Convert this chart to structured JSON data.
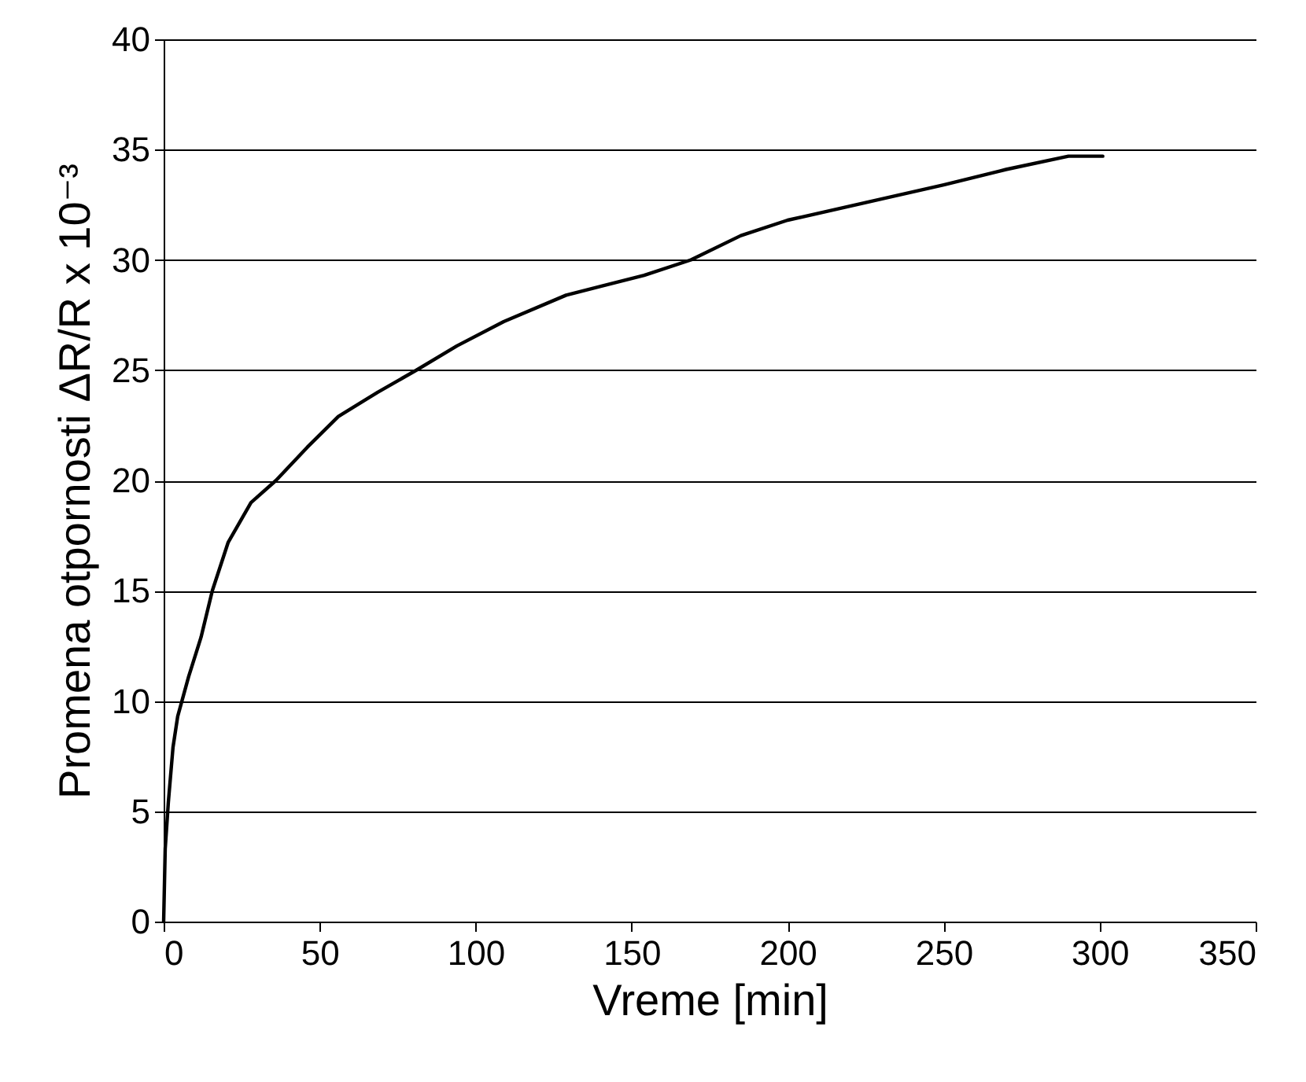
{
  "chart_data": {
    "type": "line",
    "xlabel": "Vreme [min]",
    "ylabel": "Promena otpornosti ΔR/R x 10⁻³",
    "xlim": [
      0,
      350
    ],
    "xticks": [
      0,
      50,
      100,
      150,
      200,
      250,
      300,
      350
    ],
    "ylim": [
      0,
      40
    ],
    "yticks": [
      0,
      5,
      10,
      15,
      20,
      25,
      30,
      35,
      40
    ],
    "grid": "y",
    "line_style": "solid",
    "series": [
      {
        "color": "#000000",
        "x": [
          0,
          0.5,
          1.5,
          3,
          4.5,
          8,
          12,
          15.6,
          20.7,
          28,
          36,
          46,
          56,
          68.6,
          81,
          94,
          109,
          129,
          154,
          169,
          185,
          200,
          225,
          250,
          270,
          290,
          301
        ],
        "values": [
          0,
          3.3,
          5.4,
          7.9,
          9.3,
          11.1,
          12.9,
          15,
          17.2,
          19,
          20,
          21.5,
          22.9,
          24,
          25,
          26.1,
          27.2,
          28.4,
          29.3,
          30,
          31.1,
          31.8,
          32.6,
          33.4,
          34.1,
          34.7,
          34.7
        ]
      }
    ]
  }
}
